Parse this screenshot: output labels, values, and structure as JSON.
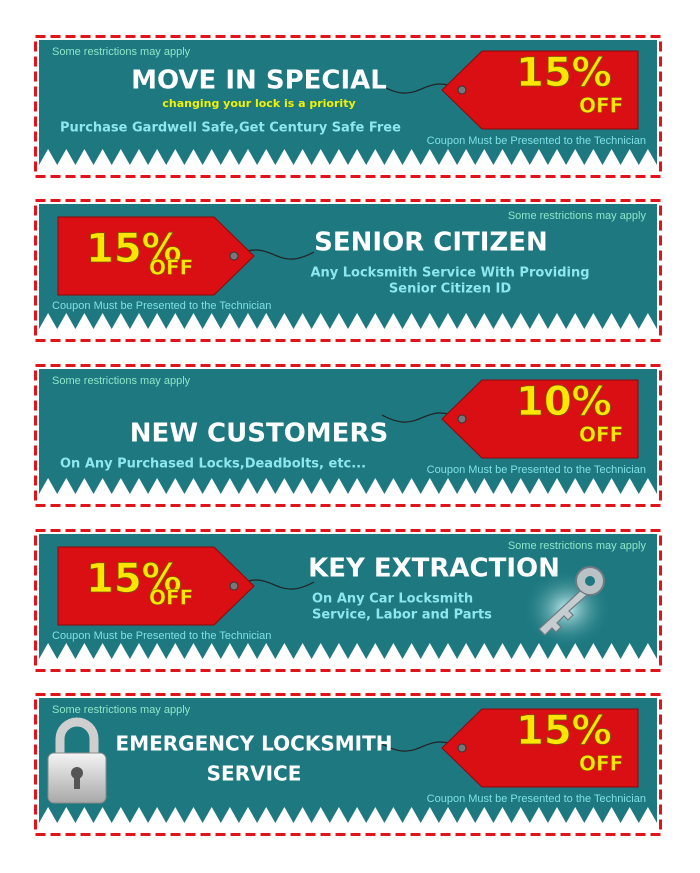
{
  "coupons": [
    {
      "restrictions": "Some restrictions may apply",
      "title": [
        "MOVE IN SPECIAL"
      ],
      "tagline": "changing your lock is a priority",
      "description": [
        "Purchase Gardwell Safe,Get Century Safe Free"
      ],
      "footer": "Coupon Must be Presented to the Technician",
      "discount": "15%",
      "off": "OFF"
    },
    {
      "restrictions": "Some restrictions may apply",
      "title": [
        "SENIOR CITIZEN"
      ],
      "description": [
        "Any Locksmith Service With Providing",
        "Senior Citizen ID"
      ],
      "footer": "Coupon Must be Presented to the Technician",
      "discount": "15%",
      "off": "OFF"
    },
    {
      "restrictions": "Some restrictions may apply",
      "title": [
        "NEW CUSTOMERS"
      ],
      "description": [
        "On Any Purchased Locks,Deadbolts, etc..."
      ],
      "footer": "Coupon Must be Presented to the Technician",
      "discount": "10%",
      "off": "OFF"
    },
    {
      "restrictions": "Some restrictions may apply",
      "title": [
        "KEY EXTRACTION"
      ],
      "description": [
        "On Any Car Locksmith",
        "Service, Labor and Parts"
      ],
      "footer": "Coupon Must be Presented to the Technician",
      "discount": "15%",
      "off": "OFF"
    },
    {
      "restrictions": "Some restrictions may apply",
      "title": [
        "EMERGENCY LOCKSMITH",
        "SERVICE"
      ],
      "description": [],
      "footer": "Coupon Must be Presented to the Technician",
      "discount": "15%",
      "off": "OFF"
    }
  ]
}
